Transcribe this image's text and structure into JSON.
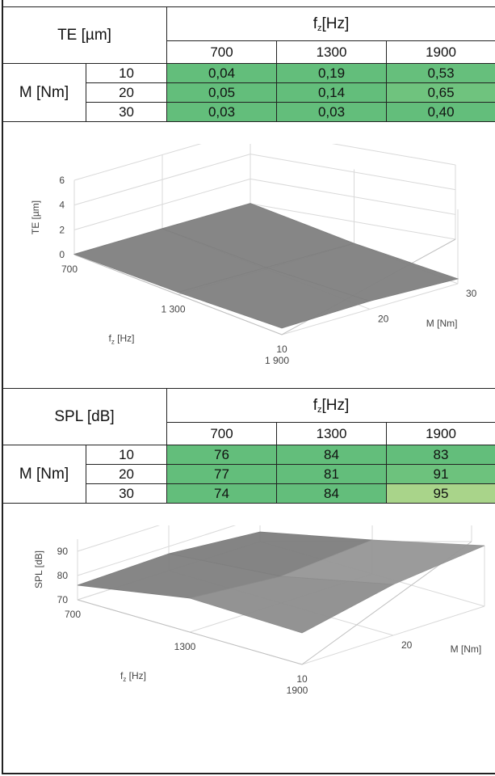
{
  "tables": [
    {
      "corner_label": "TE [µm]",
      "col_header_main": "f",
      "col_header_sub": "z",
      "col_header_unit": "[Hz]",
      "row_header": "M [Nm]",
      "columns": [
        "700",
        "1300",
        "1900"
      ],
      "rows": [
        {
          "m": "10",
          "values": [
            "0,04",
            "0,19",
            "0,53"
          ],
          "colors": [
            "#63be7b",
            "#63be7b",
            "#66bf7c"
          ]
        },
        {
          "m": "20",
          "values": [
            "0,05",
            "0,14",
            "0,65"
          ],
          "colors": [
            "#63be7b",
            "#63be7b",
            "#6fc37e"
          ]
        },
        {
          "m": "30",
          "values": [
            "0,03",
            "0,03",
            "0,40"
          ],
          "colors": [
            "#63be7b",
            "#63be7b",
            "#63be7b"
          ]
        }
      ]
    },
    {
      "corner_label": "SPL [dB]",
      "col_header_main": "f",
      "col_header_sub": "z",
      "col_header_unit": "[Hz]",
      "row_header": "M [Nm]",
      "columns": [
        "700",
        "1300",
        "1900"
      ],
      "rows": [
        {
          "m": "10",
          "values": [
            "76",
            "84",
            "83"
          ],
          "colors": [
            "#63be7b",
            "#63be7b",
            "#63be7b"
          ]
        },
        {
          "m": "20",
          "values": [
            "77",
            "81",
            "91"
          ],
          "colors": [
            "#63be7b",
            "#63be7b",
            "#6dc27d"
          ]
        },
        {
          "m": "30",
          "values": [
            "74",
            "84",
            "95"
          ],
          "colors": [
            "#63be7b",
            "#63be7b",
            "#a9d48a"
          ]
        }
      ]
    }
  ],
  "chart_data": [
    {
      "type": "surface",
      "title": "",
      "ylabel": "TE [µm]",
      "xlabel_main": "f",
      "xlabel_sub": "z",
      "xlabel_unit": "[Hz]",
      "zlabel": "M [Nm]",
      "x": [
        700,
        1300,
        1900
      ],
      "x_tick_labels": [
        "700",
        "1 300",
        "1 900"
      ],
      "m": [
        10,
        20,
        30
      ],
      "m_tick_labels": [
        "10",
        "20",
        "30"
      ],
      "y_ticks": [
        0,
        2,
        4,
        6
      ],
      "ylim": [
        0,
        6
      ],
      "grid": true,
      "values": [
        [
          0.04,
          0.19,
          0.53
        ],
        [
          0.05,
          0.14,
          0.65
        ],
        [
          0.03,
          0.03,
          0.4
        ]
      ],
      "surface_color": "#808080"
    },
    {
      "type": "surface",
      "title": "",
      "ylabel": "SPL [dB]",
      "xlabel_main": "f",
      "xlabel_sub": "z",
      "xlabel_unit": "[Hz]",
      "zlabel": "M [Nm]",
      "x": [
        700,
        1300,
        1900
      ],
      "x_tick_labels": [
        "700",
        "1300",
        "1900"
      ],
      "m": [
        10,
        20,
        30
      ],
      "m_tick_labels": [
        "10",
        "20",
        "30"
      ],
      "y_ticks": [
        70,
        80,
        90
      ],
      "ylim": [
        70,
        95
      ],
      "grid": true,
      "values": [
        [
          76,
          84,
          83
        ],
        [
          77,
          81,
          91
        ],
        [
          74,
          84,
          95
        ]
      ],
      "surface_color": "#8c8c8c"
    }
  ]
}
